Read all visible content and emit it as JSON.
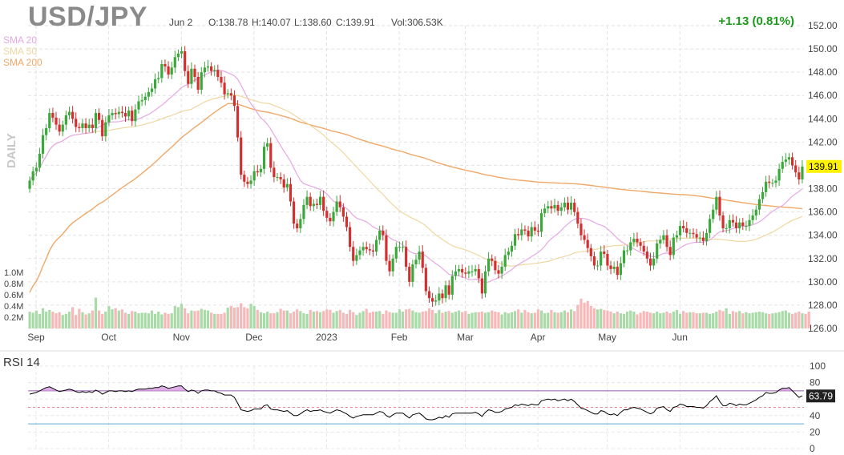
{
  "header": {
    "symbol": "USD/JPY",
    "date": "Jun 2",
    "open": "O:138.78",
    "high": "H:140.07",
    "low": "L:138.60",
    "close": "C:139.91",
    "volume": "Vol:306.53K",
    "change": "+1.13 (0.81%)",
    "change_color": "#1a9a1a"
  },
  "legend": {
    "sma20": {
      "label": "SMA 20",
      "color": "#e6a8e6"
    },
    "sma50": {
      "label": "SMA 50",
      "color": "#efd7a0"
    },
    "sma200": {
      "label": "SMA 200",
      "color": "#f0a868"
    }
  },
  "daily_label": "DAILY",
  "rsi": {
    "label": "RSI 14",
    "last_value": "63.79",
    "overbought": 70,
    "oversold": 30,
    "middle": 50,
    "line_color": "#9b59b6",
    "oversold_color": "#5fa8d3"
  },
  "colors": {
    "up": "#3ba83b",
    "down": "#d32f2f",
    "vol_up": "#a8dba8",
    "vol_down": "#f6b8b8",
    "price_tag": "#fff200"
  },
  "chart_data": [
    {
      "type": "candlestick",
      "title": "USD/JPY",
      "ylim": [
        126,
        152
      ],
      "y_ticks": [
        "152.00",
        "150.00",
        "148.00",
        "146.00",
        "144.00",
        "142.00",
        "140.00",
        "138.00",
        "136.00",
        "134.00",
        "132.00",
        "130.00",
        "128.00",
        "126.00"
      ],
      "x_ticks": [
        "Sep",
        "Oct",
        "Nov",
        "Dec",
        "2023",
        "Feb",
        "Mar",
        "Apr",
        "May",
        "Jun"
      ],
      "last_price": "139.91",
      "ohlc_close": [
        138.7,
        139.5,
        139.8,
        141.0,
        142.6,
        143.2,
        144.5,
        144.1,
        143.5,
        142.9,
        143.5,
        144.3,
        144.6,
        144.0,
        143.3,
        143.2,
        143.6,
        143.2,
        143.5,
        143.2,
        144.5,
        143.9,
        142.5,
        143.7,
        144.3,
        144.5,
        144.4,
        144.6,
        144.5,
        144.2,
        144.7,
        143.8,
        144.8,
        145.5,
        145.6,
        145.9,
        146.3,
        146.6,
        147.4,
        147.5,
        148.7,
        148.5,
        147.8,
        148.4,
        149.3,
        149.6,
        149.8,
        148.1,
        147.0,
        148.3,
        147.6,
        146.5,
        148.0,
        148.4,
        148.5,
        148.1,
        148.2,
        147.6,
        147.1,
        146.1,
        146.2,
        146.0,
        145.1,
        142.4,
        139.2,
        138.6,
        138.4,
        138.7,
        139.5,
        139.4,
        139.7,
        141.6,
        141.9,
        139.8,
        139.0,
        139.0,
        138.8,
        138.1,
        138.4,
        136.9,
        135.0,
        134.6,
        135.4,
        136.6,
        137.3,
        136.5,
        136.7,
        136.6,
        137.3,
        136.1,
        135.5,
        135.2,
        136.0,
        136.9,
        136.4,
        135.6,
        134.7,
        133.0,
        131.8,
        132.3,
        132.7,
        133.0,
        132.8,
        132.7,
        132.6,
        133.6,
        134.4,
        134.0,
        131.8,
        130.9,
        132.0,
        133.0,
        133.0,
        133.0,
        131.3,
        130.0,
        131.5,
        131.9,
        132.6,
        131.2,
        129.2,
        128.6,
        128.3,
        128.4,
        129.0,
        128.6,
        129.7,
        128.9,
        130.5,
        130.9,
        131.1,
        130.8,
        130.7,
        130.9,
        130.9,
        131.1,
        130.3,
        129.0,
        130.9,
        132.0,
        131.8,
        131.0,
        130.7,
        131.3,
        132.3,
        132.6,
        133.1,
        134.1,
        134.0,
        134.5,
        134.4,
        133.9,
        134.7,
        134.4,
        134.3,
        135.9,
        136.3,
        136.5,
        136.3,
        136.6,
        136.1,
        136.4,
        136.8,
        136.2,
        136.8,
        136.0,
        135.0,
        134.0,
        133.6,
        132.9,
        132.2,
        131.4,
        131.4,
        132.6,
        132.4,
        131.4,
        131.1,
        131.3,
        130.6,
        131.6,
        132.7,
        132.7,
        133.4,
        133.7,
        133.4,
        133.1,
        132.6,
        132.0,
        131.4,
        132.0,
        133.3,
        133.6,
        134.0,
        133.0,
        132.3,
        133.8,
        134.0,
        134.8,
        134.6,
        134.2,
        134.2,
        134.1,
        133.8,
        133.8,
        133.5,
        134.2,
        135.4,
        136.2,
        137.3,
        135.7,
        134.6,
        134.6,
        135.3,
        135.1,
        134.6,
        135.1,
        134.8,
        134.8,
        135.3,
        135.7,
        136.2,
        137.1,
        137.7,
        138.6,
        138.5,
        138.5,
        138.7,
        139.7,
        140.3,
        140.5,
        140.7,
        140.0,
        139.4,
        138.8,
        139.9
      ],
      "ohlc_open": [
        138.0,
        138.7,
        139.5,
        139.8,
        141.0,
        142.6,
        143.2,
        144.5,
        144.1,
        143.5,
        142.9,
        143.5,
        144.3,
        144.6,
        144.0,
        143.3,
        143.2,
        143.6,
        143.2,
        143.5,
        143.2,
        144.5,
        143.9,
        142.5,
        143.7,
        144.3,
        144.5,
        144.4,
        144.6,
        144.5,
        144.2,
        144.7,
        143.8,
        144.8,
        145.5,
        145.6,
        145.9,
        146.3,
        146.6,
        147.4,
        147.5,
        148.7,
        148.5,
        147.8,
        148.4,
        149.3,
        149.6,
        149.8,
        148.1,
        147.0,
        148.3,
        147.6,
        146.5,
        148.0,
        148.4,
        148.5,
        148.1,
        148.2,
        147.6,
        147.1,
        146.1,
        146.2,
        146.0,
        145.1,
        142.4,
        139.2,
        138.6,
        138.4,
        138.7,
        139.5,
        139.4,
        139.7,
        141.6,
        141.9,
        139.8,
        139.0,
        139.0,
        138.8,
        138.1,
        138.4,
        136.9,
        135.0,
        134.6,
        135.4,
        136.6,
        137.3,
        136.5,
        136.7,
        136.6,
        137.3,
        136.1,
        135.5,
        135.2,
        136.0,
        136.9,
        136.4,
        135.6,
        134.7,
        133.0,
        131.8,
        132.3,
        132.7,
        133.0,
        132.8,
        132.7,
        132.6,
        133.6,
        134.4,
        134.0,
        131.8,
        130.9,
        132.0,
        133.0,
        133.0,
        133.0,
        131.3,
        130.0,
        131.5,
        131.9,
        132.6,
        131.2,
        129.2,
        128.6,
        128.3,
        128.4,
        129.0,
        128.6,
        129.7,
        128.9,
        130.5,
        130.9,
        131.1,
        130.8,
        130.7,
        130.9,
        130.9,
        131.1,
        130.3,
        129.0,
        130.9,
        132.0,
        131.8,
        131.0,
        130.7,
        131.3,
        132.3,
        132.6,
        133.1,
        134.1,
        134.0,
        134.5,
        134.4,
        133.9,
        134.7,
        134.4,
        134.3,
        135.9,
        136.3,
        136.5,
        136.3,
        136.6,
        136.1,
        136.4,
        136.8,
        136.2,
        136.8,
        136.0,
        135.0,
        134.0,
        133.6,
        132.9,
        132.2,
        131.4,
        131.4,
        132.6,
        132.4,
        131.4,
        131.1,
        131.3,
        130.6,
        131.6,
        132.7,
        132.7,
        133.4,
        133.7,
        133.4,
        133.1,
        132.6,
        132.0,
        131.4,
        132.0,
        133.3,
        133.6,
        134.0,
        133.0,
        132.3,
        133.8,
        134.0,
        134.8,
        134.6,
        134.2,
        134.2,
        134.1,
        133.8,
        133.8,
        133.5,
        134.2,
        135.4,
        136.2,
        137.3,
        135.7,
        134.6,
        134.6,
        135.3,
        135.1,
        134.6,
        135.1,
        134.8,
        134.8,
        135.3,
        135.7,
        136.2,
        137.1,
        137.7,
        138.6,
        138.5,
        138.5,
        138.7,
        139.7,
        140.3,
        140.5,
        140.7,
        140.0,
        139.4,
        138.8
      ],
      "volume_y_ticks": [
        "1.0M",
        "0.8M",
        "0.6M",
        "0.4M",
        "0.2M"
      ],
      "volume": [
        0.3,
        0.28,
        0.32,
        0.26,
        0.36,
        0.3,
        0.33,
        0.3,
        0.27,
        0.29,
        0.24,
        0.26,
        0.3,
        0.38,
        0.24,
        0.35,
        0.29,
        0.25,
        0.27,
        0.32,
        0.55,
        0.32,
        0.26,
        0.3,
        0.4,
        0.34,
        0.36,
        0.32,
        0.34,
        0.28,
        0.26,
        0.31,
        0.3,
        0.27,
        0.28,
        0.28,
        0.27,
        0.32,
        0.26,
        0.3,
        0.25,
        0.28,
        0.26,
        0.27,
        0.4,
        0.38,
        0.44,
        0.36,
        0.27,
        0.32,
        0.31,
        0.32,
        0.35,
        0.33,
        0.32,
        0.28,
        0.26,
        0.26,
        0.26,
        0.28,
        0.37,
        0.4,
        0.37,
        0.38,
        0.45,
        0.38,
        0.36,
        0.44,
        0.4,
        0.33,
        0.29,
        0.27,
        0.3,
        0.27,
        0.27,
        0.29,
        0.35,
        0.32,
        0.32,
        0.27,
        0.3,
        0.34,
        0.31,
        0.27,
        0.26,
        0.33,
        0.3,
        0.31,
        0.29,
        0.31,
        0.34,
        0.33,
        0.28,
        0.31,
        0.33,
        0.28,
        0.26,
        0.33,
        0.29,
        0.24,
        0.28,
        0.31,
        0.35,
        0.28,
        0.3,
        0.3,
        0.31,
        0.26,
        0.32,
        0.29,
        0.28,
        0.28,
        0.34,
        0.3,
        0.34,
        0.35,
        0.32,
        0.29,
        0.28,
        0.3,
        0.31,
        0.36,
        0.33,
        0.27,
        0.33,
        0.28,
        0.3,
        0.31,
        0.28,
        0.3,
        0.32,
        0.29,
        0.31,
        0.26,
        0.28,
        0.29,
        0.29,
        0.3,
        0.28,
        0.29,
        0.32,
        0.3,
        0.29,
        0.25,
        0.29,
        0.27,
        0.29,
        0.31,
        0.34,
        0.28,
        0.33,
        0.29,
        0.27,
        0.28,
        0.34,
        0.32,
        0.27,
        0.28,
        0.33,
        0.29,
        0.28,
        0.29,
        0.32,
        0.29,
        0.34,
        0.31,
        0.42,
        0.53,
        0.46,
        0.49,
        0.4,
        0.36,
        0.34,
        0.35,
        0.33,
        0.32,
        0.3,
        0.27,
        0.3,
        0.27,
        0.26,
        0.3,
        0.32,
        0.3,
        0.25,
        0.28,
        0.31,
        0.3,
        0.28,
        0.27,
        0.3,
        0.27,
        0.28,
        0.3,
        0.27,
        0.3,
        0.33,
        0.26,
        0.31,
        0.28,
        0.29,
        0.29,
        0.27,
        0.27,
        0.28,
        0.28,
        0.26,
        0.27,
        0.3,
        0.33,
        0.31,
        0.36,
        0.26,
        0.31,
        0.29,
        0.31,
        0.27,
        0.29,
        0.27,
        0.28,
        0.29,
        0.3,
        0.29,
        0.27,
        0.26,
        0.27,
        0.28,
        0.29,
        0.31,
        0.32,
        0.28,
        0.26,
        0.28,
        0.3,
        0.27,
        0.26,
        0.3
      ]
    },
    {
      "type": "line",
      "title": "RSI 14",
      "ylim": [
        0,
        100
      ],
      "y_ticks": [
        "100",
        "80",
        "60",
        "40",
        "20",
        "0"
      ],
      "last_value": "63.79",
      "values": [
        66,
        67,
        68,
        70,
        72,
        74,
        75,
        73,
        71,
        69,
        70,
        71,
        72,
        71,
        69,
        68,
        69,
        68,
        69,
        68,
        71,
        69,
        66,
        68,
        70,
        70,
        69,
        70,
        70,
        69,
        70,
        69,
        71,
        72,
        72,
        72,
        73,
        73,
        74,
        74,
        76,
        75,
        73,
        74,
        75,
        76,
        76,
        72,
        69,
        71,
        70,
        67,
        70,
        71,
        71,
        70,
        70,
        68,
        67,
        65,
        65,
        65,
        62,
        55,
        47,
        46,
        45,
        46,
        48,
        48,
        48,
        52,
        53,
        48,
        47,
        47,
        46,
        45,
        46,
        43,
        40,
        40,
        42,
        45,
        47,
        45,
        46,
        46,
        47,
        45,
        44,
        43,
        45,
        47,
        46,
        44,
        42,
        39,
        37,
        39,
        40,
        41,
        41,
        41,
        41,
        43,
        45,
        44,
        40,
        38,
        41,
        43,
        43,
        43,
        40,
        37,
        41,
        42,
        43,
        40,
        36,
        35,
        35,
        36,
        38,
        37,
        40,
        38,
        42,
        43,
        43,
        43,
        43,
        43,
        43,
        44,
        42,
        39,
        44,
        47,
        46,
        44,
        44,
        45,
        48,
        49,
        50,
        53,
        52,
        54,
        53,
        52,
        54,
        53,
        53,
        58,
        59,
        60,
        59,
        60,
        58,
        59,
        60,
        58,
        60,
        57,
        53,
        49,
        48,
        46,
        44,
        42,
        42,
        46,
        45,
        42,
        41,
        42,
        40,
        44,
        47,
        47,
        49,
        50,
        49,
        48,
        46,
        44,
        42,
        44,
        49,
        50,
        51,
        47,
        45,
        50,
        51,
        54,
        53,
        51,
        51,
        51,
        50,
        50,
        49,
        52,
        57,
        60,
        64,
        57,
        52,
        52,
        55,
        54,
        52,
        54,
        53,
        53,
        55,
        57,
        59,
        62,
        64,
        68,
        67,
        67,
        68,
        71,
        73,
        73,
        74,
        70,
        66,
        62,
        64
      ]
    }
  ]
}
